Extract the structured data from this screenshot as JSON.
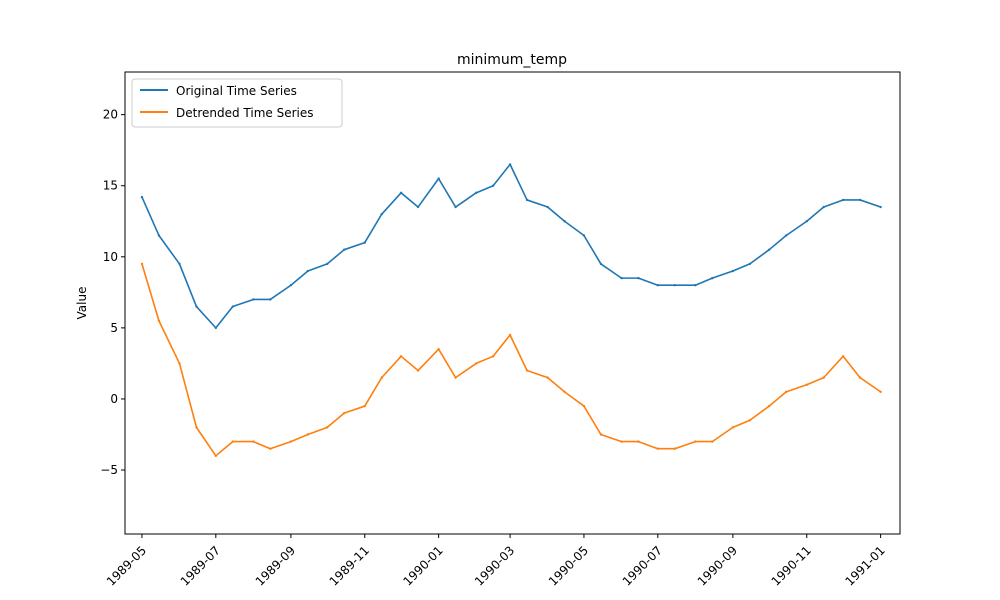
{
  "chart_data": {
    "type": "line",
    "title": "minimum_temp",
    "xlabel": "",
    "ylabel": "Value",
    "ylim": [
      -9.5,
      23.0
    ],
    "yticks": [
      -5,
      0,
      5,
      10,
      15,
      20
    ],
    "ytick_labels": [
      "−5",
      "0",
      "5",
      "10",
      "15",
      "20"
    ],
    "xlim": [
      "1989-04-17",
      "1991-01-17"
    ],
    "xticks": [
      "1989-05-01",
      "1989-07-01",
      "1989-09-01",
      "1989-11-01",
      "1990-01-01",
      "1990-03-01",
      "1990-05-01",
      "1990-07-01",
      "1990-09-01",
      "1990-11-01",
      "1991-01-01"
    ],
    "xtick_labels": [
      "1989-05",
      "1989-07",
      "1989-09",
      "1989-11",
      "1990-01",
      "1990-03",
      "1990-05",
      "1990-07",
      "1990-09",
      "1990-11",
      "1991-01"
    ],
    "grid": false,
    "legend_position": "top-left",
    "series": [
      {
        "name": "Original Time Series",
        "color": "#1f77b4",
        "x": [
          "1989-05-01",
          "1989-05-15",
          "1989-06-01",
          "1989-06-15",
          "1989-07-01",
          "1989-07-15",
          "1989-08-01",
          "1989-08-15",
          "1989-09-01",
          "1989-09-15",
          "1989-10-01",
          "1989-10-15",
          "1989-11-01",
          "1989-11-15",
          "1989-12-01",
          "1989-12-15",
          "1990-01-01",
          "1990-01-15",
          "1990-02-01",
          "1990-02-15",
          "1990-03-01",
          "1990-03-15",
          "1990-04-01",
          "1990-04-15",
          "1990-05-01",
          "1990-05-15",
          "1990-06-01",
          "1990-06-15",
          "1990-07-01",
          "1990-07-15",
          "1990-08-01",
          "1990-08-15",
          "1990-09-01",
          "1990-09-15",
          "1990-10-01",
          "1990-10-15",
          "1990-11-01",
          "1990-11-15",
          "1990-12-01",
          "1990-12-15",
          "1991-01-01"
        ],
        "values": [
          14.2,
          11.5,
          9.5,
          6.5,
          5.0,
          6.5,
          7.0,
          7.0,
          8.0,
          9.0,
          9.5,
          10.5,
          11.0,
          13.0,
          14.5,
          13.5,
          15.5,
          13.5,
          14.5,
          15.0,
          16.5,
          14.0,
          13.5,
          12.5,
          11.5,
          9.5,
          8.5,
          8.5,
          8.0,
          8.0,
          8.0,
          8.5,
          9.0,
          9.5,
          10.5,
          11.5,
          12.5,
          13.5,
          14.0,
          14.0,
          13.5
        ]
      },
      {
        "name": "Detrended Time Series",
        "color": "#ff7f0e",
        "x": [
          "1989-05-01",
          "1989-05-15",
          "1989-06-01",
          "1989-06-15",
          "1989-07-01",
          "1989-07-15",
          "1989-08-01",
          "1989-08-15",
          "1989-09-01",
          "1989-09-15",
          "1989-10-01",
          "1989-10-15",
          "1989-11-01",
          "1989-11-15",
          "1989-12-01",
          "1989-12-15",
          "1990-01-01",
          "1990-01-15",
          "1990-02-01",
          "1990-02-15",
          "1990-03-01",
          "1990-03-15",
          "1990-04-01",
          "1990-04-15",
          "1990-05-01",
          "1990-05-15",
          "1990-06-01",
          "1990-06-15",
          "1990-07-01",
          "1990-07-15",
          "1990-08-01",
          "1990-08-15",
          "1990-09-01",
          "1990-09-15",
          "1990-10-01",
          "1990-10-15",
          "1990-11-01",
          "1990-11-15",
          "1990-12-01",
          "1990-12-15",
          "1991-01-01"
        ],
        "values": [
          9.5,
          5.5,
          2.5,
          -2.0,
          -4.0,
          -3.0,
          -3.0,
          -3.5,
          -3.0,
          -2.5,
          -2.0,
          -1.0,
          -0.5,
          1.5,
          3.0,
          2.0,
          3.5,
          1.5,
          2.5,
          3.0,
          4.5,
          2.0,
          1.5,
          0.5,
          -0.5,
          -2.5,
          -3.0,
          -3.0,
          -3.5,
          -3.5,
          -3.0,
          -3.0,
          -2.0,
          -1.5,
          -0.5,
          0.5,
          1.0,
          1.5,
          3.0,
          1.5,
          0.5
        ]
      }
    ]
  }
}
